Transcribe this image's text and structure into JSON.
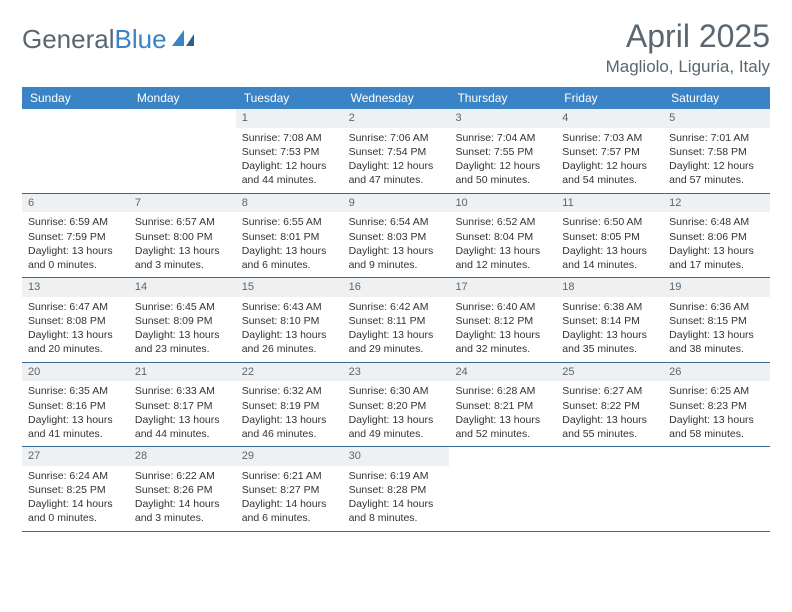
{
  "brand": {
    "part1": "General",
    "part2": "Blue"
  },
  "title": "April 2025",
  "location": "Magliolo, Liguria, Italy",
  "colors": {
    "header_bg": "#3a83c5",
    "header_text": "#ffffff",
    "daynum_bg": "#eef0f2",
    "text_muted": "#5a6770",
    "border": "#3a6a9a",
    "body_text": "#333333",
    "page_bg": "#ffffff"
  },
  "day_headers": [
    "Sunday",
    "Monday",
    "Tuesday",
    "Wednesday",
    "Thursday",
    "Friday",
    "Saturday"
  ],
  "weeks": [
    [
      {
        "n": "",
        "sr": "",
        "ss": "",
        "dl": ""
      },
      {
        "n": "",
        "sr": "",
        "ss": "",
        "dl": ""
      },
      {
        "n": "1",
        "sr": "Sunrise: 7:08 AM",
        "ss": "Sunset: 7:53 PM",
        "dl": "Daylight: 12 hours and 44 minutes."
      },
      {
        "n": "2",
        "sr": "Sunrise: 7:06 AM",
        "ss": "Sunset: 7:54 PM",
        "dl": "Daylight: 12 hours and 47 minutes."
      },
      {
        "n": "3",
        "sr": "Sunrise: 7:04 AM",
        "ss": "Sunset: 7:55 PM",
        "dl": "Daylight: 12 hours and 50 minutes."
      },
      {
        "n": "4",
        "sr": "Sunrise: 7:03 AM",
        "ss": "Sunset: 7:57 PM",
        "dl": "Daylight: 12 hours and 54 minutes."
      },
      {
        "n": "5",
        "sr": "Sunrise: 7:01 AM",
        "ss": "Sunset: 7:58 PM",
        "dl": "Daylight: 12 hours and 57 minutes."
      }
    ],
    [
      {
        "n": "6",
        "sr": "Sunrise: 6:59 AM",
        "ss": "Sunset: 7:59 PM",
        "dl": "Daylight: 13 hours and 0 minutes."
      },
      {
        "n": "7",
        "sr": "Sunrise: 6:57 AM",
        "ss": "Sunset: 8:00 PM",
        "dl": "Daylight: 13 hours and 3 minutes."
      },
      {
        "n": "8",
        "sr": "Sunrise: 6:55 AM",
        "ss": "Sunset: 8:01 PM",
        "dl": "Daylight: 13 hours and 6 minutes."
      },
      {
        "n": "9",
        "sr": "Sunrise: 6:54 AM",
        "ss": "Sunset: 8:03 PM",
        "dl": "Daylight: 13 hours and 9 minutes."
      },
      {
        "n": "10",
        "sr": "Sunrise: 6:52 AM",
        "ss": "Sunset: 8:04 PM",
        "dl": "Daylight: 13 hours and 12 minutes."
      },
      {
        "n": "11",
        "sr": "Sunrise: 6:50 AM",
        "ss": "Sunset: 8:05 PM",
        "dl": "Daylight: 13 hours and 14 minutes."
      },
      {
        "n": "12",
        "sr": "Sunrise: 6:48 AM",
        "ss": "Sunset: 8:06 PM",
        "dl": "Daylight: 13 hours and 17 minutes."
      }
    ],
    [
      {
        "n": "13",
        "sr": "Sunrise: 6:47 AM",
        "ss": "Sunset: 8:08 PM",
        "dl": "Daylight: 13 hours and 20 minutes."
      },
      {
        "n": "14",
        "sr": "Sunrise: 6:45 AM",
        "ss": "Sunset: 8:09 PM",
        "dl": "Daylight: 13 hours and 23 minutes."
      },
      {
        "n": "15",
        "sr": "Sunrise: 6:43 AM",
        "ss": "Sunset: 8:10 PM",
        "dl": "Daylight: 13 hours and 26 minutes."
      },
      {
        "n": "16",
        "sr": "Sunrise: 6:42 AM",
        "ss": "Sunset: 8:11 PM",
        "dl": "Daylight: 13 hours and 29 minutes."
      },
      {
        "n": "17",
        "sr": "Sunrise: 6:40 AM",
        "ss": "Sunset: 8:12 PM",
        "dl": "Daylight: 13 hours and 32 minutes."
      },
      {
        "n": "18",
        "sr": "Sunrise: 6:38 AM",
        "ss": "Sunset: 8:14 PM",
        "dl": "Daylight: 13 hours and 35 minutes."
      },
      {
        "n": "19",
        "sr": "Sunrise: 6:36 AM",
        "ss": "Sunset: 8:15 PM",
        "dl": "Daylight: 13 hours and 38 minutes."
      }
    ],
    [
      {
        "n": "20",
        "sr": "Sunrise: 6:35 AM",
        "ss": "Sunset: 8:16 PM",
        "dl": "Daylight: 13 hours and 41 minutes."
      },
      {
        "n": "21",
        "sr": "Sunrise: 6:33 AM",
        "ss": "Sunset: 8:17 PM",
        "dl": "Daylight: 13 hours and 44 minutes."
      },
      {
        "n": "22",
        "sr": "Sunrise: 6:32 AM",
        "ss": "Sunset: 8:19 PM",
        "dl": "Daylight: 13 hours and 46 minutes."
      },
      {
        "n": "23",
        "sr": "Sunrise: 6:30 AM",
        "ss": "Sunset: 8:20 PM",
        "dl": "Daylight: 13 hours and 49 minutes."
      },
      {
        "n": "24",
        "sr": "Sunrise: 6:28 AM",
        "ss": "Sunset: 8:21 PM",
        "dl": "Daylight: 13 hours and 52 minutes."
      },
      {
        "n": "25",
        "sr": "Sunrise: 6:27 AM",
        "ss": "Sunset: 8:22 PM",
        "dl": "Daylight: 13 hours and 55 minutes."
      },
      {
        "n": "26",
        "sr": "Sunrise: 6:25 AM",
        "ss": "Sunset: 8:23 PM",
        "dl": "Daylight: 13 hours and 58 minutes."
      }
    ],
    [
      {
        "n": "27",
        "sr": "Sunrise: 6:24 AM",
        "ss": "Sunset: 8:25 PM",
        "dl": "Daylight: 14 hours and 0 minutes."
      },
      {
        "n": "28",
        "sr": "Sunrise: 6:22 AM",
        "ss": "Sunset: 8:26 PM",
        "dl": "Daylight: 14 hours and 3 minutes."
      },
      {
        "n": "29",
        "sr": "Sunrise: 6:21 AM",
        "ss": "Sunset: 8:27 PM",
        "dl": "Daylight: 14 hours and 6 minutes."
      },
      {
        "n": "30",
        "sr": "Sunrise: 6:19 AM",
        "ss": "Sunset: 8:28 PM",
        "dl": "Daylight: 14 hours and 8 minutes."
      },
      {
        "n": "",
        "sr": "",
        "ss": "",
        "dl": ""
      },
      {
        "n": "",
        "sr": "",
        "ss": "",
        "dl": ""
      },
      {
        "n": "",
        "sr": "",
        "ss": "",
        "dl": ""
      }
    ]
  ]
}
